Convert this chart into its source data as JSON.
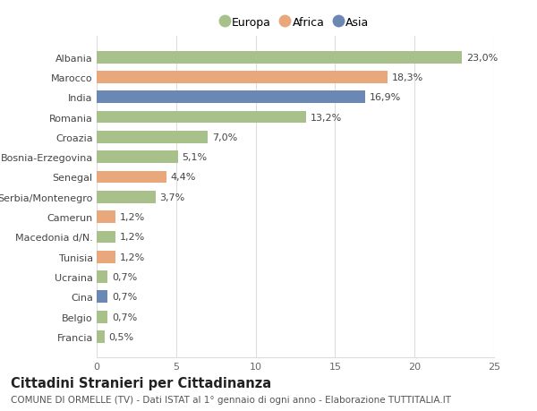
{
  "categories": [
    "Albania",
    "Marocco",
    "India",
    "Romania",
    "Croazia",
    "Bosnia-Erzegovina",
    "Senegal",
    "Serbia/Montenegro",
    "Camerun",
    "Macedonia d/N.",
    "Tunisia",
    "Ucraina",
    "Cina",
    "Belgio",
    "Francia"
  ],
  "values": [
    23.0,
    18.3,
    16.9,
    13.2,
    7.0,
    5.1,
    4.4,
    3.7,
    1.2,
    1.2,
    1.2,
    0.7,
    0.7,
    0.7,
    0.5
  ],
  "labels": [
    "23,0%",
    "18,3%",
    "16,9%",
    "13,2%",
    "7,0%",
    "5,1%",
    "4,4%",
    "3,7%",
    "1,2%",
    "1,2%",
    "1,2%",
    "0,7%",
    "0,7%",
    "0,7%",
    "0,5%"
  ],
  "continents": [
    "Europa",
    "Africa",
    "Asia",
    "Europa",
    "Europa",
    "Europa",
    "Africa",
    "Europa",
    "Africa",
    "Europa",
    "Africa",
    "Europa",
    "Asia",
    "Europa",
    "Europa"
  ],
  "colors": {
    "Europa": "#a8c08a",
    "Africa": "#e8a87c",
    "Asia": "#6b88b5"
  },
  "xlim": [
    0,
    25
  ],
  "xticks": [
    0,
    5,
    10,
    15,
    20,
    25
  ],
  "title": "Cittadini Stranieri per Cittadinanza",
  "subtitle": "COMUNE DI ORMELLE (TV) - Dati ISTAT al 1° gennaio di ogni anno - Elaborazione TUTTITALIA.IT",
  "background_color": "#ffffff",
  "grid_color": "#dddddd",
  "bar_height": 0.62,
  "label_fontsize": 8.0,
  "tick_fontsize": 8.0,
  "title_fontsize": 10.5,
  "subtitle_fontsize": 7.5
}
